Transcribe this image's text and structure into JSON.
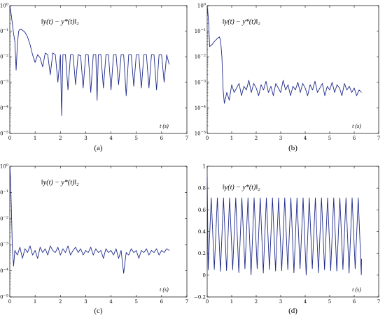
{
  "colors": {
    "line": "#1f2a8a",
    "axis": "#000000"
  },
  "chart_data": [
    {
      "panel": "(a)",
      "type": "line",
      "yscale": "log",
      "ylim": [
        1e-05,
        1
      ],
      "xlim": [
        0,
        7
      ],
      "xticks": [
        "0",
        "1",
        "2",
        "3",
        "4",
        "5",
        "6",
        "7"
      ],
      "yticks": [
        "10^-5",
        "10^-4",
        "10^-3",
        "10^-2",
        "10^-1",
        "10^0"
      ],
      "xlabel": "t (s)",
      "annotation": "‖y(t) − y*(t)‖₂",
      "shape": "decay from 1 to ~0.1 then oscillation around 1e-2 with deep dips",
      "x": [
        0,
        0.05,
        0.1,
        0.15,
        0.2,
        0.25,
        0.3,
        0.35,
        0.4,
        0.5,
        0.6,
        0.7,
        0.8,
        0.9,
        1.0,
        1.1,
        1.2,
        1.3,
        1.4,
        1.5,
        1.6,
        1.7,
        1.8,
        1.9,
        2.0,
        2.05,
        2.1,
        2.2,
        2.3,
        2.4,
        2.5,
        2.6,
        2.7,
        2.8,
        2.9,
        3.0,
        3.1,
        3.2,
        3.3,
        3.4,
        3.45,
        3.5,
        3.6,
        3.7,
        3.8,
        3.9,
        4.0,
        4.1,
        4.2,
        4.3,
        4.4,
        4.5,
        4.6,
        4.7,
        4.8,
        4.9,
        5.0,
        5.1,
        5.2,
        5.3,
        5.4,
        5.5,
        5.6,
        5.7,
        5.8,
        5.9,
        6.0,
        6.1,
        6.2,
        6.3
      ],
      "y": [
        1.0,
        0.5,
        0.2,
        0.08,
        0.04,
        0.003,
        0.03,
        0.1,
        0.12,
        0.11,
        0.09,
        0.06,
        0.03,
        0.012,
        0.006,
        0.012,
        0.009,
        0.004,
        0.014,
        0.012,
        0.002,
        0.014,
        0.012,
        0.001,
        0.012,
        5e-05,
        0.012,
        0.012,
        0.0005,
        0.012,
        0.012,
        0.0008,
        0.012,
        0.011,
        0.0006,
        0.012,
        0.012,
        0.0004,
        0.012,
        0.012,
        0.0002,
        0.012,
        0.012,
        0.0006,
        0.012,
        0.012,
        0.0005,
        0.012,
        0.012,
        0.0008,
        0.012,
        0.012,
        0.0003,
        0.012,
        0.012,
        0.0007,
        0.012,
        0.012,
        0.0006,
        0.012,
        0.012,
        0.0006,
        0.012,
        0.012,
        0.0005,
        0.012,
        0.012,
        0.001,
        0.012,
        0.005
      ]
    },
    {
      "panel": "(b)",
      "type": "line",
      "yscale": "log",
      "ylim": [
        1e-05,
        1
      ],
      "xlim": [
        0,
        7
      ],
      "xticks": [
        "0",
        "1",
        "2",
        "3",
        "4",
        "5",
        "6",
        "7"
      ],
      "yticks": [
        "10^-5",
        "10^-4",
        "10^-3",
        "10^-2",
        "10^-1",
        "10^0"
      ],
      "xlabel": "t (s)",
      "annotation": "‖y(t) − y*(t)‖₂",
      "shape": "fast decay to ~0.03, rise to ~0.05, drop at t≈0.6 to noise around 5e-4",
      "x": [
        0,
        0.05,
        0.1,
        0.2,
        0.3,
        0.4,
        0.5,
        0.55,
        0.6,
        0.65,
        0.7,
        0.8,
        0.9,
        1.0,
        1.1,
        1.2,
        1.3,
        1.4,
        1.5,
        1.6,
        1.7,
        1.8,
        1.9,
        2.0,
        2.1,
        2.2,
        2.3,
        2.4,
        2.5,
        2.6,
        2.7,
        2.8,
        2.9,
        3.0,
        3.1,
        3.2,
        3.3,
        3.4,
        3.5,
        3.6,
        3.7,
        3.8,
        3.9,
        4.0,
        4.1,
        4.2,
        4.3,
        4.4,
        4.5,
        4.6,
        4.7,
        4.8,
        4.9,
        5.0,
        5.1,
        5.2,
        5.3,
        5.4,
        5.5,
        5.6,
        5.7,
        5.8,
        5.9,
        6.0,
        6.1,
        6.2,
        6.3
      ],
      "y": [
        1.0,
        0.3,
        0.025,
        0.03,
        0.04,
        0.05,
        0.06,
        0.04,
        0.01,
        0.0005,
        0.00015,
        0.0004,
        0.0002,
        0.0008,
        0.0004,
        0.0006,
        0.0009,
        0.0003,
        0.0007,
        0.0005,
        0.0012,
        0.0004,
        0.0009,
        0.0006,
        0.0003,
        0.0008,
        0.0005,
        0.0011,
        0.0004,
        0.0007,
        0.0003,
        0.0009,
        0.0006,
        0.0004,
        0.0012,
        0.0005,
        0.0008,
        0.0003,
        0.0007,
        0.0005,
        0.001,
        0.0004,
        0.0009,
        0.0006,
        0.0003,
        0.0008,
        0.0005,
        0.0011,
        0.0004,
        0.0006,
        0.0009,
        0.0003,
        0.0007,
        0.0005,
        0.001,
        0.0004,
        0.0008,
        0.0006,
        0.0003,
        0.0009,
        0.0005,
        0.0007,
        0.0004,
        0.0006,
        0.0003,
        0.0005,
        0.0004
      ]
    },
    {
      "panel": "(c)",
      "type": "line",
      "yscale": "log",
      "ylim": [
        1e-05,
        1
      ],
      "xlim": [
        0,
        7
      ],
      "xticks": [
        "0",
        "1",
        "2",
        "3",
        "4",
        "5",
        "6",
        "7"
      ],
      "yticks": [
        "10^-5",
        "10^-4",
        "10^-3",
        "10^-2",
        "10^-1",
        "10^0"
      ],
      "xlabel": "t (s)",
      "annotation": "‖y(t) − y*(t)‖₂",
      "shape": "fast decay from 1 to noise floor around 5e-4",
      "x": [
        0,
        0.03,
        0.06,
        0.1,
        0.15,
        0.2,
        0.3,
        0.4,
        0.5,
        0.6,
        0.7,
        0.8,
        0.9,
        1.0,
        1.1,
        1.2,
        1.3,
        1.4,
        1.5,
        1.6,
        1.7,
        1.8,
        1.9,
        2.0,
        2.1,
        2.2,
        2.3,
        2.4,
        2.5,
        2.6,
        2.7,
        2.8,
        2.9,
        3.0,
        3.1,
        3.2,
        3.3,
        3.4,
        3.5,
        3.6,
        3.7,
        3.8,
        3.9,
        4.0,
        4.1,
        4.2,
        4.3,
        4.4,
        4.5,
        4.6,
        4.7,
        4.8,
        4.9,
        5.0,
        5.1,
        5.2,
        5.3,
        5.4,
        5.5,
        5.6,
        5.7,
        5.8,
        5.9,
        6.0,
        6.1,
        6.2,
        6.3
      ],
      "y": [
        1.0,
        0.3,
        0.03,
        0.0008,
        0.00015,
        0.0006,
        0.0004,
        0.0008,
        0.0003,
        0.0007,
        0.0005,
        0.0009,
        0.0004,
        0.0006,
        0.0003,
        0.0008,
        0.0005,
        0.0007,
        0.0004,
        0.0009,
        0.0006,
        0.0005,
        0.0008,
        0.0004,
        0.0007,
        0.0005,
        0.0009,
        0.0004,
        0.0006,
        0.0008,
        0.0005,
        0.0007,
        0.0004,
        0.0006,
        0.0005,
        0.0008,
        0.0004,
        0.0007,
        0.0005,
        0.0006,
        0.0003,
        0.0007,
        0.0005,
        0.0006,
        0.0004,
        0.0007,
        0.0003,
        0.0006,
        8e-05,
        0.0005,
        0.0004,
        0.0007,
        0.0005,
        0.0006,
        0.0003,
        0.0006,
        0.0005,
        0.0007,
        0.0004,
        0.0006,
        0.0005,
        0.0007,
        0.0004,
        0.0006,
        0.0005,
        0.0007,
        0.0006
      ]
    },
    {
      "panel": "(d)",
      "type": "line",
      "yscale": "linear",
      "ylim": [
        -0.2,
        1
      ],
      "xlim": [
        0,
        7
      ],
      "xticks": [
        "0",
        "1",
        "2",
        "3",
        "4",
        "5",
        "6",
        "7"
      ],
      "yticks": [
        "-0.2",
        "0",
        "0.2",
        "0.4",
        "0.6",
        "0.8",
        "1"
      ],
      "xlabel": "t (s)",
      "annotation": "‖y(t) − y*(t)‖₂",
      "shape": "periodic oscillation between ~0 and ~0.71, period ~0.25 s",
      "period": 0.25,
      "amplitude_max": 0.71,
      "amplitude_min": 0.0,
      "t_end": 6.3
    }
  ],
  "panel_labels": [
    "(a)",
    "(b)",
    "(c)",
    "(d)"
  ],
  "annotation_text": "‖y(t) − y*(t)‖₂",
  "xlabel_text": "t (s)"
}
